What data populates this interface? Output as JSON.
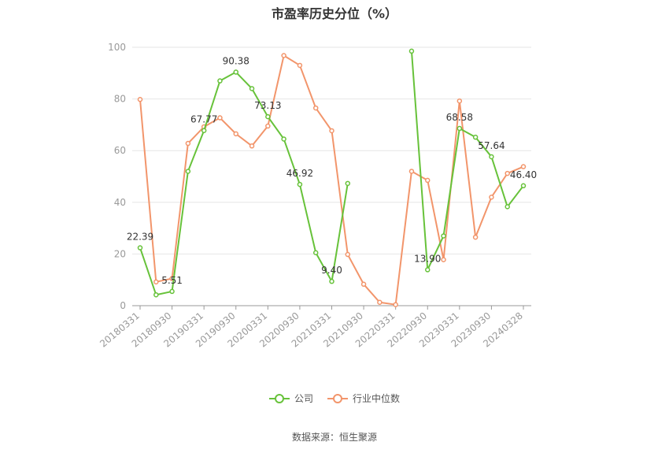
{
  "title": "市盈率历史分位（%）",
  "source_text": "数据来源：恒生聚源",
  "colors": {
    "company": "#67c23a",
    "industry": "#f2956b",
    "grid": "#e6e6e6",
    "axis": "#999999"
  },
  "chart_data": {
    "type": "line",
    "x_tick_labels": [
      "20180331",
      "20180930",
      "20190331",
      "20190930",
      "20200331",
      "20200930",
      "20210331",
      "20210930",
      "20220331",
      "20220930",
      "20230331",
      "20230930",
      "20240328"
    ],
    "ylim": [
      0,
      100
    ],
    "y_ticks": [
      0,
      20,
      40,
      60,
      80,
      100
    ],
    "grid": true,
    "legend_position": "bottom",
    "series": [
      {
        "name": "公司",
        "values": [
          22.39,
          4.2,
          5.51,
          52,
          67.77,
          87,
          90.38,
          84,
          73.13,
          64.5,
          46.92,
          20.5,
          9.4,
          47.3,
          null,
          null,
          null,
          98.5,
          13.9,
          27,
          68.58,
          65.2,
          57.64,
          38.3,
          46.4
        ]
      },
      {
        "name": "行业中位数",
        "values": [
          79.8,
          9.2,
          10.5,
          62.8,
          69.2,
          72.7,
          66.5,
          61.8,
          69.5,
          96.8,
          93,
          76.5,
          67.7,
          19.8,
          8.3,
          1.3,
          0.4,
          52,
          48.5,
          17.8,
          79.2,
          26.5,
          42,
          51.2,
          53.8
        ]
      }
    ],
    "data_labels": [
      {
        "series": 0,
        "index": 0,
        "text": "22.39"
      },
      {
        "series": 0,
        "index": 2,
        "text": "5.51"
      },
      {
        "series": 0,
        "index": 4,
        "text": "67.77"
      },
      {
        "series": 0,
        "index": 6,
        "text": "90.38"
      },
      {
        "series": 0,
        "index": 8,
        "text": "73.13"
      },
      {
        "series": 0,
        "index": 10,
        "text": "46.92"
      },
      {
        "series": 0,
        "index": 12,
        "text": "9.40"
      },
      {
        "series": 0,
        "index": 18,
        "text": "13.90"
      },
      {
        "series": 0,
        "index": 20,
        "text": "68.58"
      },
      {
        "series": 0,
        "index": 22,
        "text": "57.64"
      },
      {
        "series": 0,
        "index": 24,
        "text": "46.40"
      }
    ]
  }
}
